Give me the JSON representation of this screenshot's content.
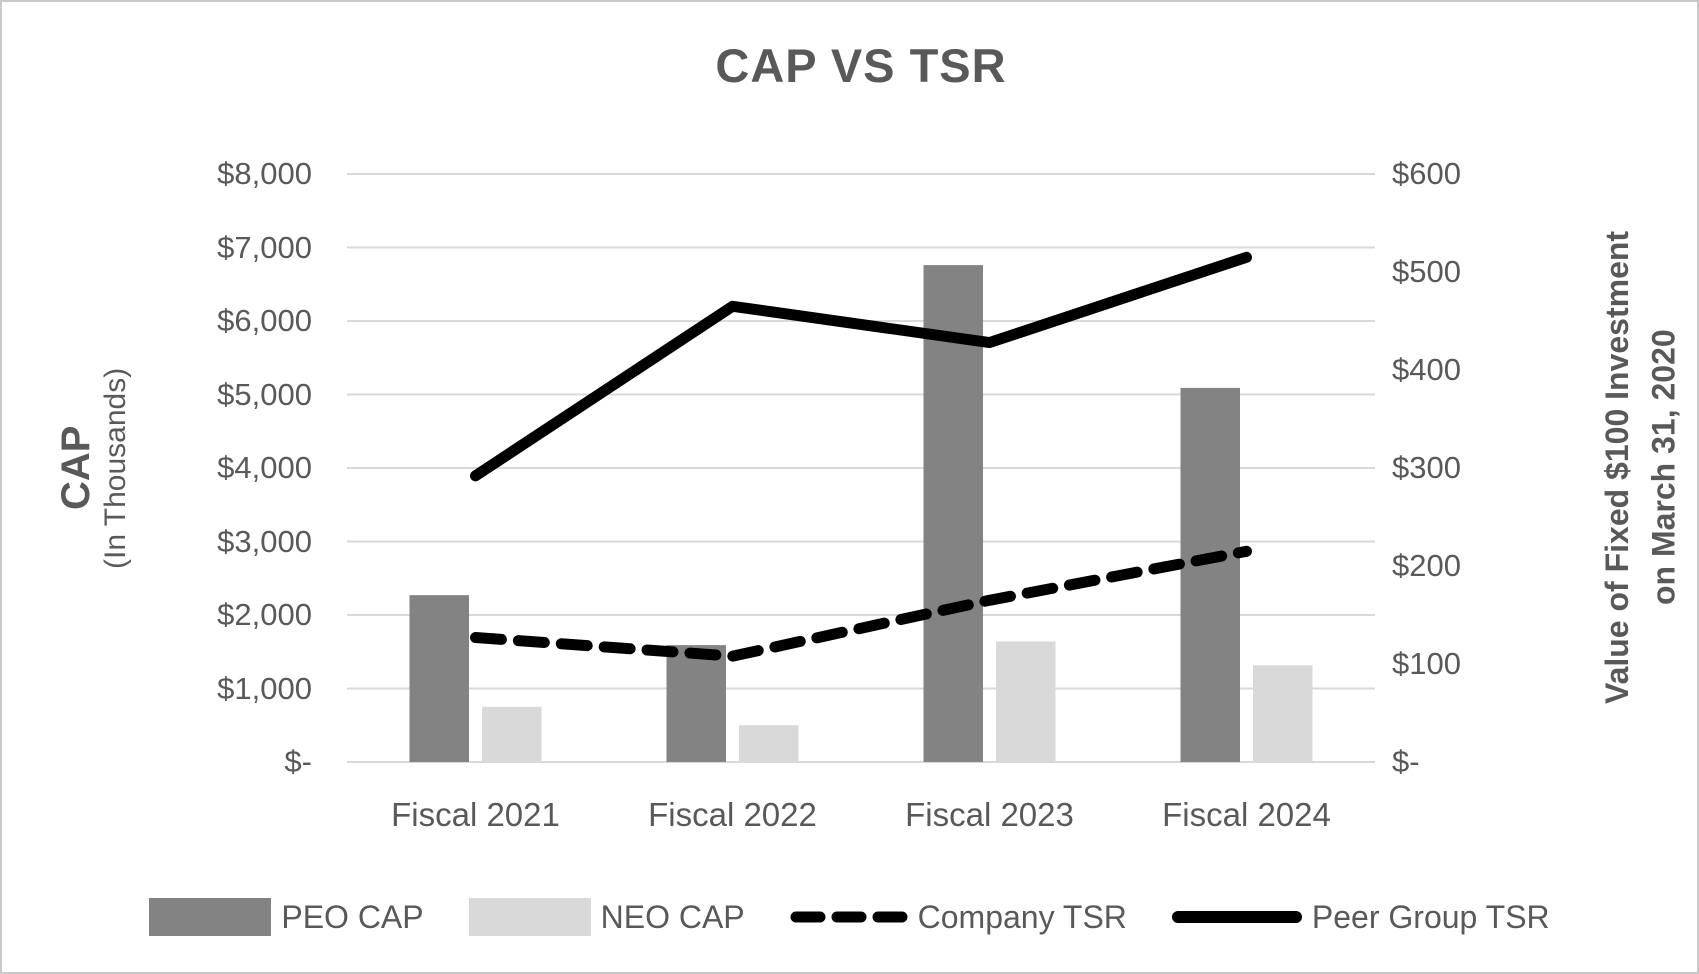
{
  "title": "CAP VS TSR",
  "left_axis": {
    "title_line1": "CAP",
    "title_line2": "(In Thousands)",
    "ticks": [
      "$8,000",
      "$7,000",
      "$6,000",
      "$5,000",
      "$4,000",
      "$3,000",
      "$2,000",
      "$1,000",
      "$-"
    ]
  },
  "right_axis": {
    "title_line1": "Value of Fixed $100 Investment",
    "title_line2": "on March 31, 2020",
    "ticks": [
      "$600",
      "$500",
      "$400",
      "$300",
      "$200",
      "$100",
      "$-"
    ]
  },
  "colors": {
    "peo_bar": "#838383",
    "neo_bar": "#d9d9d9",
    "line_black": "#000000",
    "gridline": "#d9d9d9",
    "text": "#595959"
  },
  "chart_data": {
    "type": "bar+line combo",
    "title": "CAP VS TSR",
    "categories": [
      "Fiscal 2021",
      "Fiscal 2022",
      "Fiscal 2023",
      "Fiscal 2024"
    ],
    "series": [
      {
        "name": "PEO CAP",
        "type": "bar",
        "axis": "left",
        "color": "#838383",
        "values": [
          2270,
          1590,
          6760,
          5090
        ]
      },
      {
        "name": "NEO CAP",
        "type": "bar",
        "axis": "left",
        "color": "#d9d9d9",
        "values": [
          750,
          500,
          1640,
          1315
        ]
      },
      {
        "name": "Company TSR",
        "type": "line",
        "style": "dashed",
        "axis": "right",
        "color": "#000000",
        "values": [
          127,
          108,
          165,
          215
        ]
      },
      {
        "name": "Peer Group TSR",
        "type": "line",
        "style": "solid",
        "axis": "right",
        "color": "#000000",
        "values": [
          292,
          465,
          428,
          515
        ]
      }
    ],
    "left_axis_label": "CAP (In Thousands)",
    "right_axis_label": "Value of Fixed $100 Investment on March 31, 2020",
    "left_ylim": [
      0,
      8000
    ],
    "left_tick_step": 1000,
    "right_ylim": [
      0,
      600
    ],
    "right_tick_step": 100,
    "grid": "horizontal",
    "legend_position": "bottom"
  }
}
